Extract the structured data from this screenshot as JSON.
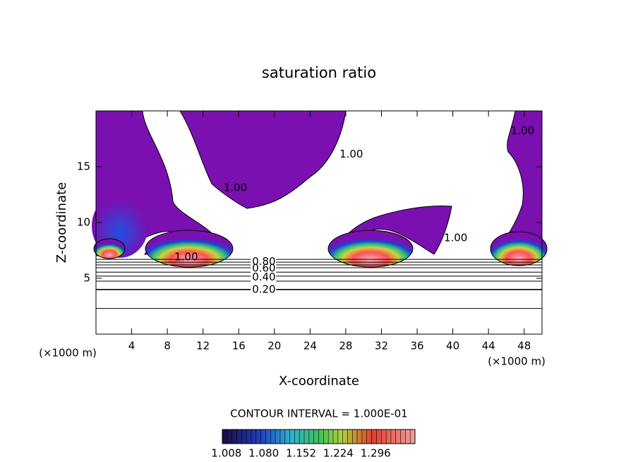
{
  "chart_data": {
    "type": "contour",
    "title": "saturation ratio",
    "xlabel": "X-coordinate",
    "ylabel": "Z-coordinate",
    "x_unit_label": "(×1000 m)",
    "xlim": [
      0,
      50
    ],
    "ylim": [
      0,
      20
    ],
    "xticks": [
      4,
      8,
      12,
      16,
      20,
      24,
      28,
      32,
      36,
      40,
      44,
      48
    ],
    "yticks": [
      5,
      10,
      15
    ],
    "contour_interval_text": "CONTOUR INTERVAL = 1.000E-01",
    "contour_z": [
      2.3,
      4.0,
      4.75,
      5.2,
      5.55,
      5.95,
      6.2,
      6.45,
      6.7
    ],
    "contour_labels": [
      {
        "value": 0.2,
        "label": "0.20",
        "x": 17.5,
        "z": 4.0
      },
      {
        "value": 0.4,
        "label": "0.40",
        "x": 17.5,
        "z": 5.1
      },
      {
        "value": 0.6,
        "label": "0.60",
        "x": 17.5,
        "z": 5.9
      },
      {
        "value": 0.8,
        "label": "0.80",
        "x": 17.5,
        "z": 6.5
      },
      {
        "value": 1.0,
        "label": "1.00",
        "x": 8.8,
        "z": 6.9
      },
      {
        "value": 1.0,
        "label": "1.00",
        "x": 14.3,
        "z": 13.1
      },
      {
        "value": 1.0,
        "label": "1.00",
        "x": 27.3,
        "z": 16.1
      },
      {
        "value": 1.0,
        "label": "1.00",
        "x": 39.0,
        "z": 8.6
      },
      {
        "value": 1.0,
        "label": "1.00",
        "x": 46.5,
        "z": 18.2
      }
    ],
    "colorbar_lim": [
      1.0,
      1.372
    ],
    "colorbar_ticks": [
      1.008,
      {
        "value": 1.08,
        "label": "1.080"
      },
      1.152,
      1.224,
      1.296
    ]
  }
}
